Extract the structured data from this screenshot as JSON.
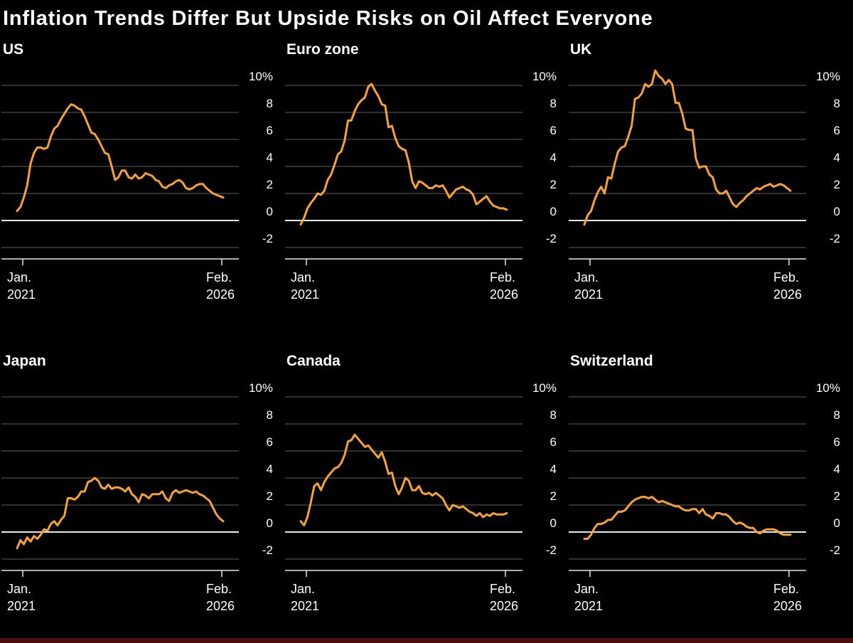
{
  "chart_data": {
    "type": "line",
    "layout": "small_multiples_2x3",
    "title": "Inflation Trends Differ But Upside Risks on Oil Affect Everyone",
    "ylabel": "%",
    "ylim": [
      -2,
      10
    ],
    "yticks": [
      10,
      8,
      6,
      4,
      2,
      0,
      -2
    ],
    "ytick_top_label": "10%",
    "grid": true,
    "legend": false,
    "x": {
      "start": "Jan. 2021",
      "end": "Feb. 2026",
      "frequency": "monthly"
    },
    "x_axis_labels": {
      "left": [
        "Jan.",
        "2021"
      ],
      "right": [
        "Feb.",
        "2026"
      ]
    },
    "series": [
      {
        "name": "US",
        "values": [
          0.7,
          1.0,
          1.7,
          2.6,
          4.2,
          5.0,
          5.4,
          5.4,
          5.3,
          5.4,
          6.2,
          6.8,
          7.0,
          7.5,
          7.9,
          8.3,
          8.6,
          8.5,
          8.3,
          8.2,
          7.7,
          7.1,
          6.5,
          6.4,
          6.0,
          5.5,
          5.0,
          4.9,
          4.0,
          3.0,
          3.2,
          3.7,
          3.7,
          3.2,
          3.1,
          3.4,
          3.1,
          3.2,
          3.5,
          3.4,
          3.3,
          3.0,
          2.9,
          2.5,
          2.4,
          2.6,
          2.7,
          2.9,
          3.0,
          2.8,
          2.4,
          2.3,
          2.4,
          2.6,
          2.7,
          2.7,
          2.4,
          2.2,
          2.0,
          1.9,
          1.8,
          1.7
        ]
      },
      {
        "name": "Euro zone",
        "values": [
          -0.3,
          0.2,
          0.9,
          1.3,
          1.6,
          2.0,
          1.9,
          2.2,
          3.0,
          3.4,
          4.1,
          4.9,
          5.1,
          5.9,
          7.4,
          7.4,
          8.1,
          8.6,
          8.9,
          9.1,
          9.9,
          10.1,
          9.6,
          9.2,
          8.6,
          8.5,
          6.9,
          7.0,
          6.1,
          5.5,
          5.3,
          5.2,
          4.3,
          2.9,
          2.4,
          2.9,
          2.8,
          2.6,
          2.4,
          2.4,
          2.6,
          2.5,
          2.6,
          2.2,
          1.7,
          2.0,
          2.3,
          2.4,
          2.5,
          2.3,
          2.2,
          1.9,
          1.2,
          1.4,
          1.6,
          1.8,
          1.4,
          1.1,
          1.0,
          0.9,
          0.9,
          0.8
        ]
      },
      {
        "name": "UK",
        "values": [
          -0.3,
          0.4,
          0.7,
          1.5,
          2.1,
          2.5,
          2.0,
          3.2,
          3.1,
          4.2,
          5.1,
          5.4,
          5.5,
          6.2,
          7.0,
          9.0,
          9.1,
          9.4,
          10.1,
          9.9,
          10.1,
          11.1,
          10.7,
          10.5,
          10.1,
          10.4,
          10.1,
          8.7,
          8.7,
          7.9,
          6.8,
          6.7,
          6.7,
          4.6,
          3.9,
          4.0,
          4.0,
          3.4,
          3.2,
          2.3,
          2.0,
          2.0,
          2.2,
          1.7,
          1.2,
          1.0,
          1.3,
          1.5,
          1.8,
          2.0,
          2.2,
          2.4,
          2.3,
          2.5,
          2.6,
          2.7,
          2.5,
          2.6,
          2.7,
          2.6,
          2.4,
          2.2
        ]
      },
      {
        "name": "Japan",
        "values": [
          -1.2,
          -0.6,
          -0.9,
          -0.4,
          -0.7,
          -0.3,
          -0.5,
          -0.2,
          0.2,
          0.1,
          0.6,
          0.8,
          0.5,
          0.9,
          1.2,
          2.5,
          2.5,
          2.4,
          2.6,
          3.0,
          3.0,
          3.7,
          3.8,
          4.0,
          3.8,
          3.3,
          3.2,
          3.5,
          3.2,
          3.3,
          3.3,
          3.2,
          3.0,
          3.3,
          2.8,
          2.6,
          2.2,
          2.8,
          2.7,
          2.5,
          2.8,
          2.8,
          2.8,
          3.0,
          2.5,
          2.3,
          2.9,
          3.1,
          2.9,
          3.0,
          3.1,
          3.0,
          2.9,
          3.0,
          2.8,
          2.7,
          2.5,
          2.3,
          1.8,
          1.3,
          1.0,
          0.8
        ]
      },
      {
        "name": "Canada",
        "values": [
          0.8,
          0.5,
          1.1,
          2.2,
          3.4,
          3.6,
          3.1,
          3.7,
          4.1,
          4.4,
          4.7,
          4.8,
          5.1,
          5.7,
          6.7,
          6.8,
          7.2,
          6.9,
          6.6,
          6.3,
          6.4,
          6.1,
          5.8,
          5.5,
          5.9,
          5.2,
          4.3,
          4.4,
          3.4,
          2.8,
          3.3,
          4.0,
          3.8,
          3.1,
          3.1,
          3.4,
          2.9,
          2.8,
          2.9,
          2.7,
          2.9,
          2.7,
          2.5,
          2.0,
          1.6,
          2.0,
          1.9,
          1.8,
          1.9,
          1.7,
          1.5,
          1.4,
          1.2,
          1.4,
          1.1,
          1.3,
          1.2,
          1.4,
          1.3,
          1.3,
          1.3,
          1.4
        ]
      },
      {
        "name": "Switzerland",
        "values": [
          -0.5,
          -0.5,
          -0.2,
          0.3,
          0.6,
          0.6,
          0.7,
          0.9,
          0.9,
          1.2,
          1.5,
          1.5,
          1.6,
          1.9,
          2.2,
          2.4,
          2.5,
          2.6,
          2.6,
          2.5,
          2.6,
          2.4,
          2.2,
          2.3,
          2.2,
          2.1,
          2.0,
          1.9,
          1.9,
          1.7,
          1.6,
          1.6,
          1.7,
          1.7,
          1.4,
          1.7,
          1.3,
          1.2,
          1.0,
          1.4,
          1.4,
          1.3,
          1.3,
          1.1,
          0.8,
          0.6,
          0.7,
          0.6,
          0.4,
          0.3,
          0.3,
          0.0,
          -0.1,
          0.1,
          0.2,
          0.2,
          0.2,
          0.1,
          -0.1,
          -0.2,
          -0.2,
          -0.2
        ]
      }
    ],
    "colors": {
      "line": "#F7A139",
      "grid": "#4D4D4D",
      "zero_line": "#E8E8E6",
      "axis": "#E8E8E6",
      "text": "#FFFFFF",
      "background": "#000000",
      "footer_bar": "#4A0E0E"
    }
  }
}
